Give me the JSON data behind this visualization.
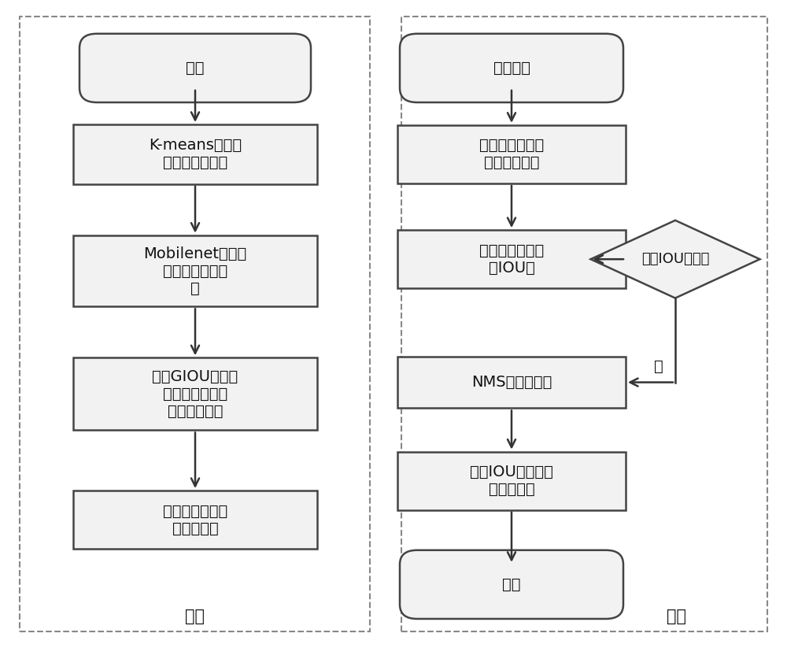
{
  "bg_color": "#ffffff",
  "box_fill": "#f2f2f2",
  "box_edge": "#444444",
  "arrow_color": "#333333",
  "text_color": "#111111",
  "dash_border_color": "#888888",
  "left_label": "训练",
  "right_label": "测试",
  "left_start_text": "开始",
  "left_box1_text": "K-means聚类获\n取目标初始锚点",
  "left_box2_text": "Mobilenet对训练\n数据进行特征提\n取",
  "left_box3_text": "加入GIOU损失，\n训练数据，获得\n最终权重文件",
  "left_box4_text": "利用权重文件测\n试输入图像",
  "right_start_text": "测试图片",
  "right_box1_text": "根据权重文件产\n生相应预测框",
  "right_box2_text": "分别与真实框计\n算IOU值",
  "right_diamond_text": "大于IOU阈值？",
  "right_box3_text": "NMS筛选预测框",
  "right_box4_text": "挑选IOU最大值作\n为预测结果",
  "right_end_text": "结束",
  "yes_label": "是",
  "font_size_node": 14,
  "font_size_label": 15
}
